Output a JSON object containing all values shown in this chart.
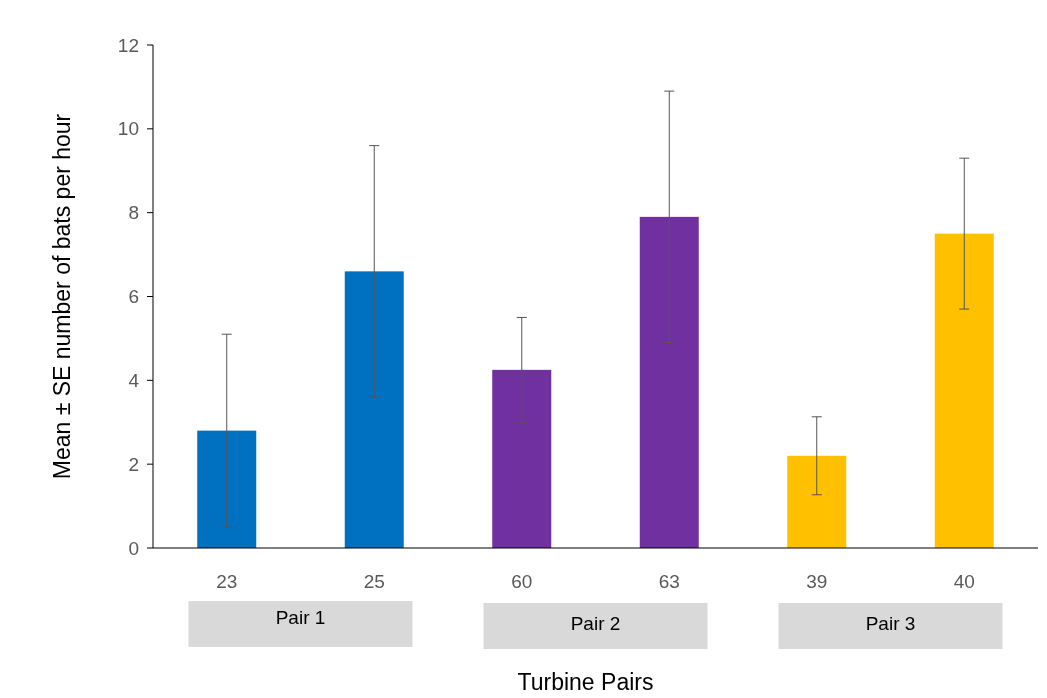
{
  "chart_data": {
    "type": "bar",
    "xlabel": "Turbine Pairs",
    "ylabel": "Mean ± SE number of bats per hour",
    "categories": [
      "23",
      "25",
      "60",
      "63",
      "39",
      "40"
    ],
    "values": [
      2.8,
      6.6,
      4.25,
      7.9,
      2.2,
      7.5
    ],
    "errors": [
      2.3,
      3.0,
      1.25,
      3.0,
      0.93,
      1.8
    ],
    "colors": [
      "#0070c0",
      "#0070c0",
      "#7030a0",
      "#7030a0",
      "#ffc000",
      "#ffc000"
    ],
    "ylim": [
      0,
      12
    ],
    "yticks": [
      0,
      2,
      4,
      6,
      8,
      10,
      12
    ],
    "annotations": [
      "Pair 1",
      "Pair 2",
      "Pair 3"
    ]
  }
}
